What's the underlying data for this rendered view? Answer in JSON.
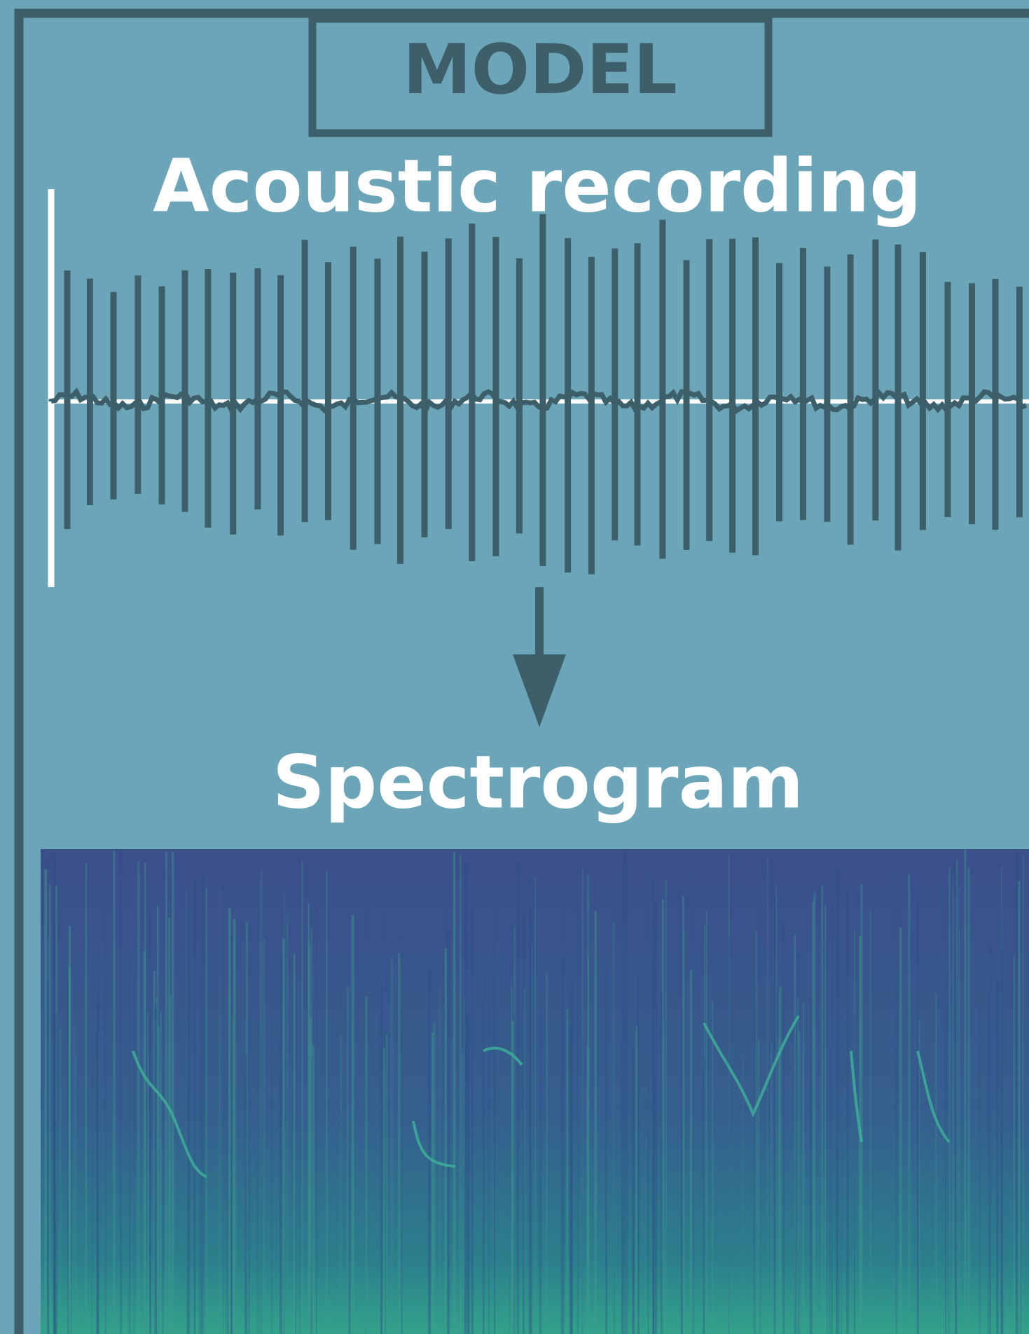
{
  "header": {
    "title": "MODEL"
  },
  "sections": [
    {
      "label": "Acoustic recording"
    },
    {
      "label": "Spectrogram"
    }
  ]
}
